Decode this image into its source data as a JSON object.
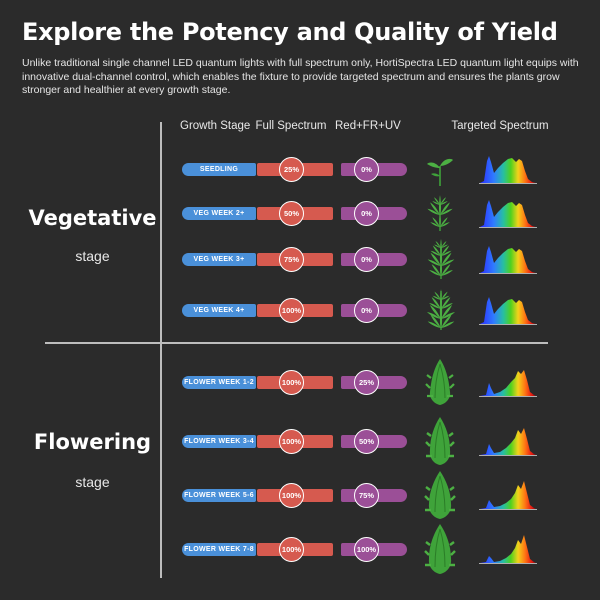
{
  "title": "Explore the Potency and Quality of Yield",
  "intro": "Unlike traditional single channel LED quantum lights with full spectrum only, HortiSpectra LED quantum light equips with innovative dual-channel control, which enables the fixture to provide targeted spectrum and ensures the plants grow stronger and healthier at every growth stage.",
  "columns": {
    "growth_stage": "Growth Stage",
    "full_spectrum": "Full Spectrum",
    "red_fr_uv": "Red+FR+UV",
    "targeted_spectrum": "Targeted Spectrum"
  },
  "stages": {
    "vegetative": {
      "name": "Vegetative",
      "sub": "stage"
    },
    "flowering": {
      "name": "Flowering",
      "sub": "stage"
    }
  },
  "rows": [
    {
      "label": "SEEDLING",
      "full": "25%",
      "red": "0%",
      "plant_icon": "seedling-icon",
      "spectrum_icon": "full-spectrum-chart-icon"
    },
    {
      "label": "VEG WEEK 2+",
      "full": "50%",
      "red": "0%",
      "plant_icon": "young-cannabis-icon",
      "spectrum_icon": "full-spectrum-chart-icon"
    },
    {
      "label": "VEG WEEK 3+",
      "full": "75%",
      "red": "0%",
      "plant_icon": "cannabis-plant-icon",
      "spectrum_icon": "full-spectrum-chart-icon"
    },
    {
      "label": "VEG WEEK 4+",
      "full": "100%",
      "red": "0%",
      "plant_icon": "cannabis-plant-icon",
      "spectrum_icon": "full-spectrum-chart-icon"
    },
    {
      "label": "FLOWER WEEK  1-2",
      "full": "100%",
      "red": "25%",
      "plant_icon": "flowering-plant-icon",
      "spectrum_icon": "red-spectrum-chart-icon"
    },
    {
      "label": "FLOWER WEEK 3-4",
      "full": "100%",
      "red": "50%",
      "plant_icon": "flowering-plant-icon",
      "spectrum_icon": "red-spectrum-chart-icon"
    },
    {
      "label": "FLOWER WEEK 5-6",
      "full": "100%",
      "red": "75%",
      "plant_icon": "flowering-plant-icon",
      "spectrum_icon": "red-spectrum-chart-icon"
    },
    {
      "label": "FLOWER WEEK 7-8",
      "full": "100%",
      "red": "100%",
      "plant_icon": "flowering-plant-icon",
      "spectrum_icon": "red-spectrum-chart-icon"
    }
  ],
  "colors": {
    "background": "#2b2b2b",
    "stage_pill": "#4a90d9",
    "full_spectrum": "#d65a4f",
    "red_fr_uv": "#9b4f97",
    "plant": "#3fa33a"
  }
}
